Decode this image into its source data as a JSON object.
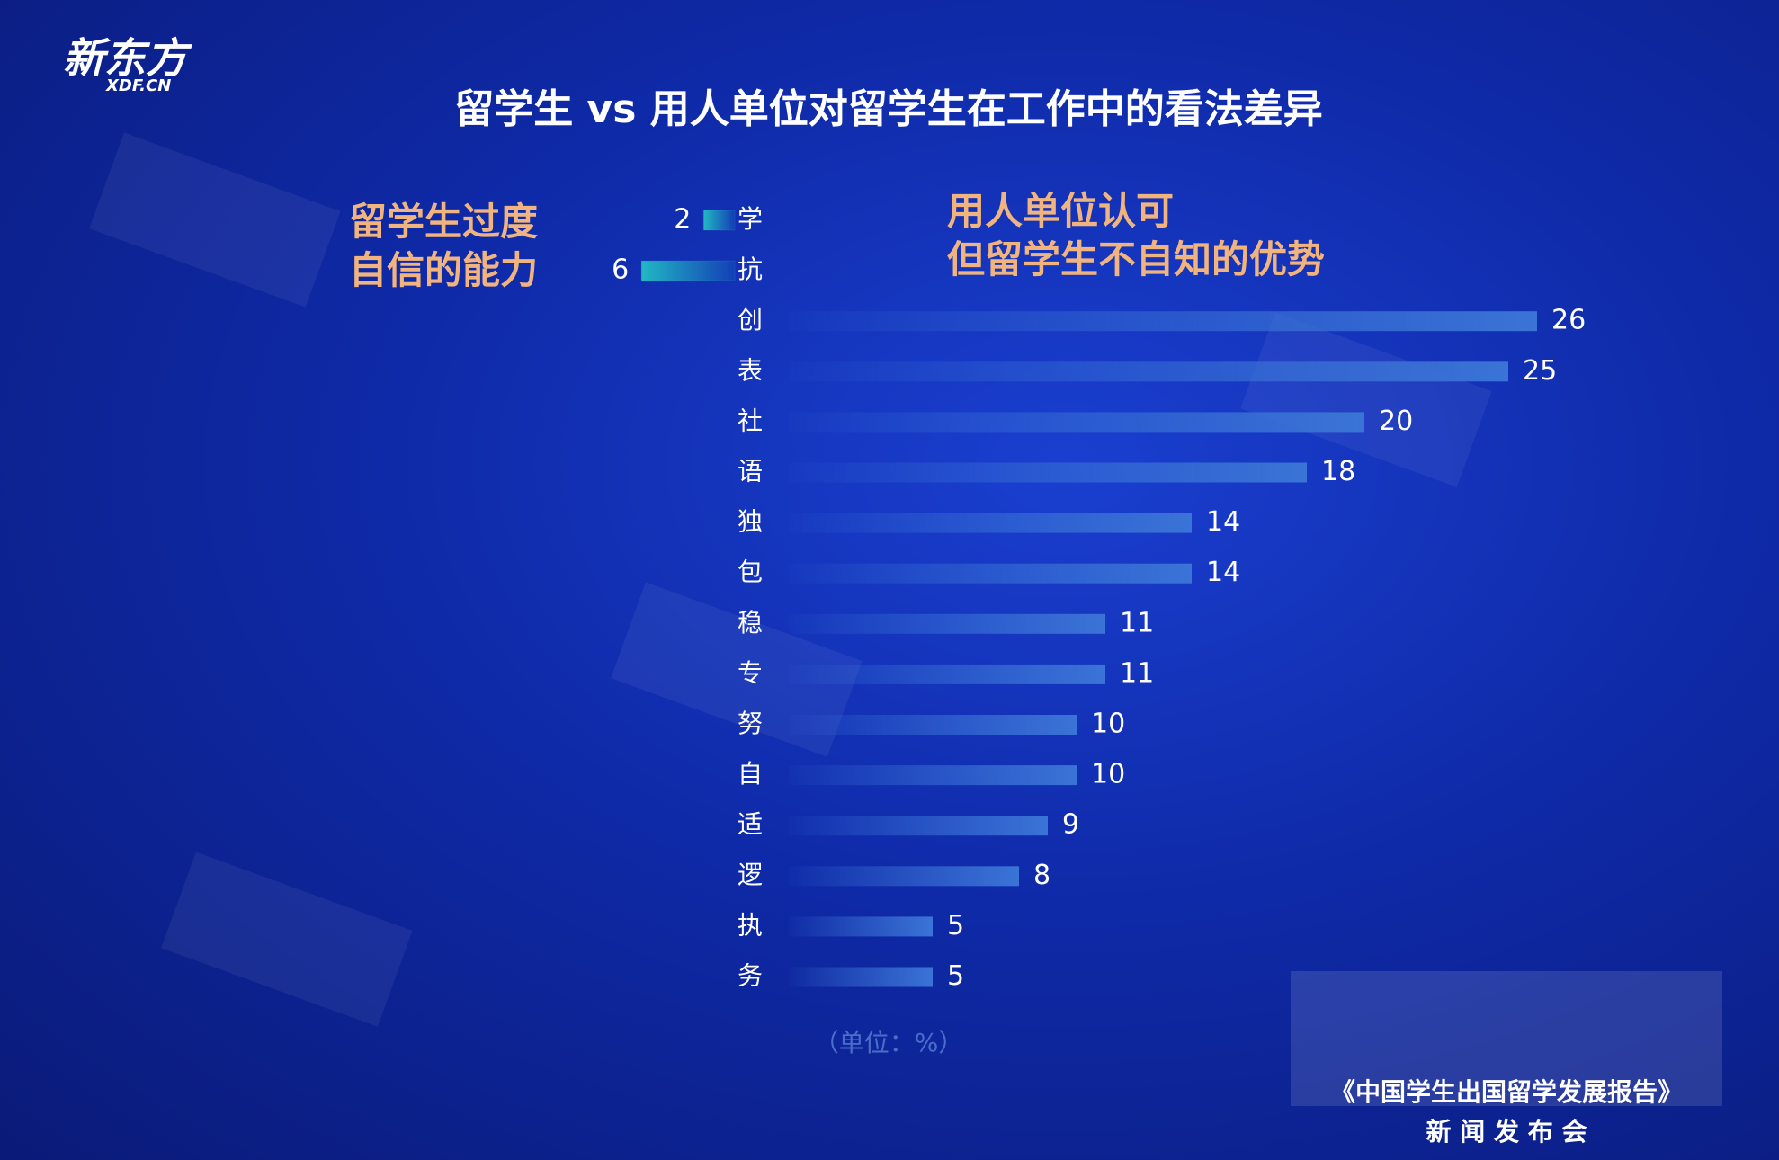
{
  "chart_data": {
    "type": "diverging-bar",
    "title": "留学生 vs 用人单位对留学生在工作中的看法差异",
    "unit_note": "（单位：%）",
    "footer_report": "《中国学生出国留学发展报告》",
    "footer_event": "新 闻 发 布 会",
    "categories": [
      "学",
      "抗",
      "创",
      "表",
      "社",
      "语",
      "独",
      "包",
      "稳",
      "专",
      "努",
      "自",
      "适",
      "逻",
      "执",
      "务"
    ],
    "series": [
      {
        "name": "留学生过度\n自信的能力",
        "color": "#22b8c4",
        "side": "left",
        "values": [
          2,
          6,
          null,
          null,
          null,
          null,
          null,
          null,
          null,
          null,
          null,
          null,
          null,
          null,
          null,
          null
        ]
      },
      {
        "name": "用人单位认可\n但留学生不自知的优势",
        "color": "#3b74d6",
        "side": "right",
        "values": [
          null,
          null,
          26,
          25,
          20,
          18,
          14,
          14,
          11,
          11,
          10,
          10,
          9,
          8,
          5,
          5
        ]
      }
    ]
  }
}
